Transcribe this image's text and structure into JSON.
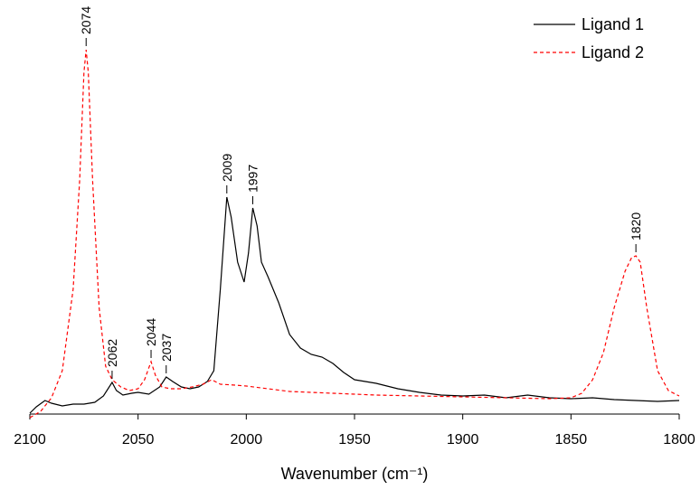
{
  "chart_data": {
    "type": "line",
    "xlabel": "Wavenumber (cm⁻¹)",
    "xlim": [
      2100,
      1800
    ],
    "xticks": [
      2100,
      2050,
      2000,
      1950,
      1900,
      1850,
      1800
    ],
    "ylim": [
      -5,
      450
    ],
    "legend": "upper right",
    "series": [
      {
        "name": "Ligand 1",
        "color": "#000000",
        "dash": "solid",
        "x": [
          2100,
          2097,
          2093,
          2090,
          2085,
          2080,
          2075,
          2070,
          2066,
          2062,
          2060,
          2057,
          2053,
          2050,
          2045,
          2040,
          2037,
          2034,
          2030,
          2026,
          2022,
          2018,
          2015,
          2012,
          2009,
          2007,
          2004,
          2001,
          1999,
          1997,
          1995,
          1993,
          1990,
          1985,
          1980,
          1975,
          1970,
          1965,
          1960,
          1955,
          1950,
          1940,
          1930,
          1920,
          1910,
          1900,
          1890,
          1880,
          1870,
          1860,
          1850,
          1840,
          1830,
          1820,
          1810,
          1800
        ],
        "values": [
          1,
          8,
          15,
          12,
          9,
          11,
          11,
          13,
          20,
          35,
          26,
          21,
          23,
          24,
          22,
          30,
          41,
          36,
          30,
          28,
          30,
          36,
          48,
          138,
          240,
          218,
          168,
          146,
          178,
          228,
          208,
          168,
          152,
          123,
          88,
          73,
          66,
          63,
          56,
          46,
          38,
          34,
          28,
          24,
          21,
          20,
          21,
          18,
          21,
          18,
          17,
          18,
          16,
          15,
          14,
          15
        ]
      },
      {
        "name": "Ligand 2",
        "color": "#ff0000",
        "dash": "dashed",
        "x": [
          2100,
          2095,
          2090,
          2085,
          2080,
          2077,
          2075,
          2074,
          2073,
          2071,
          2068,
          2065,
          2062,
          2058,
          2054,
          2050,
          2047,
          2044,
          2042,
          2039,
          2035,
          2030,
          2025,
          2020,
          2016,
          2012,
          2005,
          2000,
          1990,
          1980,
          1960,
          1940,
          1920,
          1900,
          1880,
          1860,
          1850,
          1845,
          1840,
          1835,
          1830,
          1825,
          1822,
          1820,
          1818,
          1815,
          1810,
          1805,
          1800
        ],
        "values": [
          -4,
          3,
          18,
          48,
          138,
          258,
          378,
          403,
          378,
          258,
          118,
          53,
          38,
          30,
          26,
          28,
          38,
          58,
          43,
          30,
          28,
          28,
          30,
          33,
          38,
          33,
          32,
          31,
          28,
          25,
          23,
          21,
          20,
          19,
          18,
          17,
          18,
          23,
          38,
          68,
          118,
          158,
          173,
          175,
          168,
          118,
          48,
          26,
          20
        ]
      }
    ],
    "annotations": [
      {
        "x": 2074,
        "y": 403
      },
      {
        "x": 2062,
        "y": 35
      },
      {
        "x": 2044,
        "y": 58
      },
      {
        "x": 2037,
        "y": 41
      },
      {
        "x": 2009,
        "y": 240
      },
      {
        "x": 1997,
        "y": 228
      },
      {
        "x": 1820,
        "y": 175
      }
    ]
  }
}
